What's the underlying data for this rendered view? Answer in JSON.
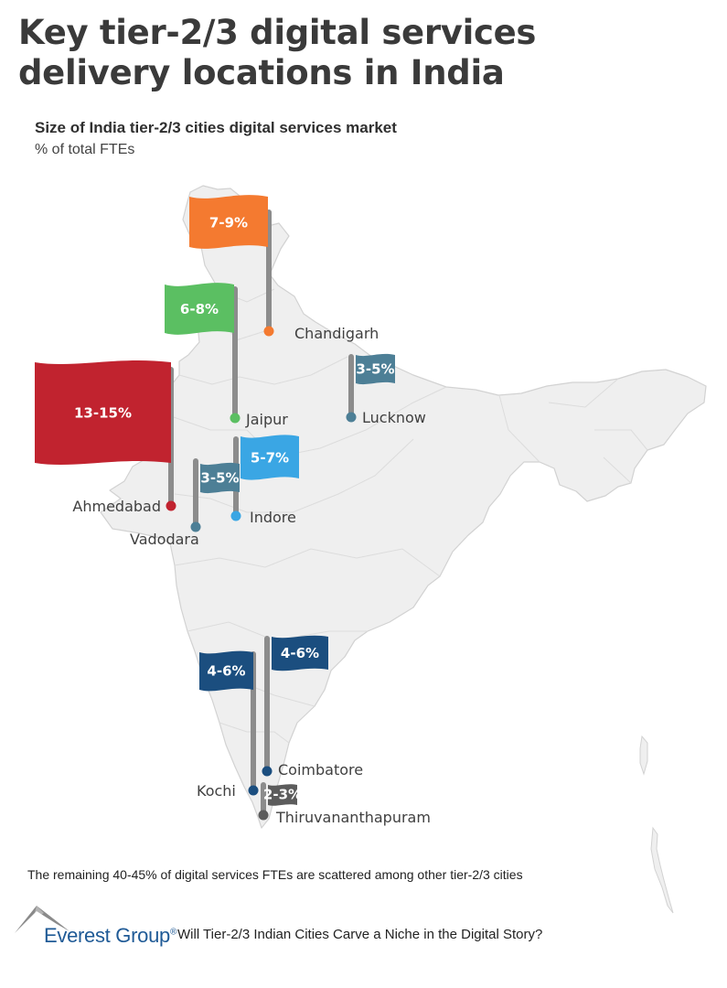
{
  "title_line1": "Key tier-2/3 digital services",
  "title_line2": "delivery locations in India",
  "subtitle": "Size of India tier-2/3 cities digital services market",
  "unit": "% of total FTEs",
  "cities": [
    {
      "name": "Chandigarh",
      "share": "7-9%",
      "color": "#f47a30"
    },
    {
      "name": "Jaipur",
      "share": "6-8%",
      "color": "#5bbf62"
    },
    {
      "name": "Lucknow",
      "share": "3-5%",
      "color": "#4d7f96"
    },
    {
      "name": "Ahmedabad",
      "share": "13-15%",
      "color": "#c1232f"
    },
    {
      "name": "Indore",
      "share": "5-7%",
      "color": "#3aa6e4"
    },
    {
      "name": "Vadodara",
      "share": "3-5%",
      "color": "#4d7f96"
    },
    {
      "name": "Coimbatore",
      "share": "4-6%",
      "color": "#1b4e7f"
    },
    {
      "name": "Kochi",
      "share": "4-6%",
      "color": "#1b4e7f"
    },
    {
      "name": "Thiruvananthapuram",
      "share": "2-3%",
      "color": "#5c5c5c"
    }
  ],
  "footnote": "The remaining 40-45% of digital services FTEs are scattered among other tier-2/3 cities",
  "logo": {
    "name": "Everest Group",
    "reg": "®"
  },
  "source": "Will Tier-2/3 Indian Cities Carve a Niche in the Digital Story?"
}
